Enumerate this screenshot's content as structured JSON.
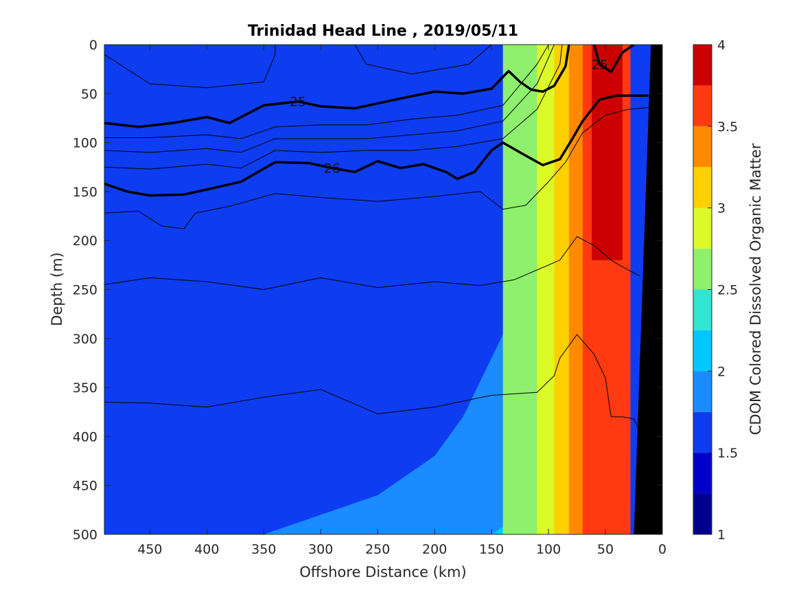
{
  "chart_data": {
    "type": "heatmap",
    "title": "Trinidad Head Line , 2019/05/11",
    "xlabel": "Offshore Distance (km)",
    "ylabel": "Depth (m)",
    "xlim": [
      490,
      0
    ],
    "x_reversed": true,
    "ylim": [
      0,
      500
    ],
    "y_reversed": true,
    "xticks": [
      450,
      400,
      350,
      300,
      250,
      200,
      150,
      100,
      50,
      0
    ],
    "yticks": [
      0,
      50,
      100,
      150,
      200,
      250,
      300,
      350,
      400,
      450,
      500
    ],
    "colorbar": {
      "label": "CDOM Colored Dissolved Organic Matter",
      "range": [
        1,
        4
      ],
      "ticks": [
        1,
        1.5,
        2,
        2.5,
        3,
        3.5,
        4
      ],
      "levels": [
        1,
        1.25,
        1.5,
        1.75,
        2,
        2.25,
        2.5,
        2.75,
        3,
        3.25,
        3.5,
        3.75,
        4
      ],
      "colors": [
        "#00008f",
        "#0000cd",
        "#0e3cf0",
        "#1a8cff",
        "#00c8ff",
        "#30e6d2",
        "#8ef06c",
        "#dcfa28",
        "#ffd000",
        "#ff8a00",
        "#ff3a10",
        "#cc0000"
      ]
    },
    "field_bands": [
      {
        "level": 2,
        "boundary_depths": [
          330,
          320,
          300,
          280,
          260,
          240,
          220,
          200,
          160,
          120,
          90,
          60,
          40,
          20
        ]
      },
      {
        "level": 3,
        "boundary_depths": [
          500,
          500,
          500,
          500,
          480,
          460,
          420,
          380,
          320,
          260,
          220,
          180,
          160,
          150
        ]
      },
      {
        "level": 4,
        "boundary_depths": [
          500,
          500,
          500,
          500,
          500,
          500,
          500,
          500,
          500,
          480,
          440,
          380,
          340,
          300
        ]
      },
      {
        "level": 5,
        "boundary_depths": [
          500,
          500,
          500,
          500,
          500,
          500,
          500,
          500,
          500,
          500,
          500,
          480,
          430,
          380
        ]
      },
      {
        "level": 6,
        "boundary_depths": [
          500,
          500,
          500,
          500,
          500,
          500,
          500,
          500,
          500,
          500,
          500,
          500,
          500,
          480
        ]
      }
    ],
    "field_x": [
      490,
      450,
      400,
      350,
      300,
      250,
      200,
      175,
      150,
      125,
      110,
      100,
      90,
      85
    ],
    "nearshore_bands": [
      {
        "level": 6,
        "x_outer": 140,
        "x_inner": 100
      },
      {
        "level": 7,
        "x_outer": 110,
        "x_inner": 88
      },
      {
        "level": 8,
        "x_outer": 95,
        "x_inner": 80
      },
      {
        "level": 9,
        "x_outer": 82,
        "x_inner": 68
      },
      {
        "level": 10,
        "x_outer": 70,
        "x_inner": 28
      }
    ],
    "core_band": {
      "level": 11,
      "x_outer": 62,
      "x_inner": 35,
      "depth_top": 0,
      "depth_bottom": 220
    },
    "bathymetry": [
      [
        10,
        0
      ],
      [
        0,
        0
      ],
      [
        0,
        500
      ],
      [
        25,
        500
      ]
    ],
    "contours": [
      {
        "label": "25",
        "bold": true,
        "points": [
          [
            490,
            80
          ],
          [
            460,
            84
          ],
          [
            430,
            80
          ],
          [
            400,
            74
          ],
          [
            380,
            80
          ],
          [
            350,
            62
          ],
          [
            320,
            58
          ],
          [
            300,
            63
          ],
          [
            270,
            65
          ],
          [
            230,
            55
          ],
          [
            200,
            48
          ],
          [
            175,
            50
          ],
          [
            150,
            45
          ],
          [
            135,
            27
          ],
          [
            125,
            38
          ],
          [
            115,
            46
          ],
          [
            105,
            48
          ],
          [
            95,
            42
          ],
          [
            85,
            22
          ],
          [
            82,
            0
          ]
        ]
      },
      {
        "label": "25",
        "bold": true,
        "points": [
          [
            60,
            0
          ],
          [
            55,
            20
          ],
          [
            45,
            28
          ],
          [
            35,
            8
          ],
          [
            25,
            0
          ]
        ]
      },
      {
        "label": "26",
        "bold": true,
        "points": [
          [
            490,
            142
          ],
          [
            470,
            150
          ],
          [
            450,
            154
          ],
          [
            420,
            153
          ],
          [
            400,
            148
          ],
          [
            370,
            140
          ],
          [
            340,
            120
          ],
          [
            310,
            121
          ],
          [
            290,
            126
          ],
          [
            270,
            130
          ],
          [
            250,
            119
          ],
          [
            230,
            126
          ],
          [
            210,
            122
          ],
          [
            190,
            130
          ],
          [
            180,
            137
          ],
          [
            165,
            130
          ],
          [
            150,
            108
          ],
          [
            140,
            100
          ],
          [
            125,
            110
          ],
          [
            105,
            123
          ],
          [
            90,
            117
          ],
          [
            80,
            98
          ],
          [
            70,
            78
          ],
          [
            55,
            56
          ],
          [
            40,
            52
          ],
          [
            12,
            52
          ]
        ]
      },
      {
        "label": "",
        "bold": false,
        "points": [
          [
            490,
            10
          ],
          [
            450,
            40
          ],
          [
            400,
            44
          ],
          [
            350,
            38
          ],
          [
            340,
            10
          ],
          [
            340,
            0
          ]
        ]
      },
      {
        "label": "",
        "bold": false,
        "points": [
          [
            270,
            0
          ],
          [
            260,
            20
          ],
          [
            220,
            30
          ],
          [
            170,
            20
          ],
          [
            150,
            0
          ]
        ]
      },
      {
        "label": "",
        "bold": false,
        "points": [
          [
            490,
            95
          ],
          [
            450,
            95
          ],
          [
            400,
            92
          ],
          [
            370,
            96
          ],
          [
            340,
            84
          ],
          [
            300,
            82
          ],
          [
            260,
            82
          ],
          [
            220,
            76
          ],
          [
            180,
            72
          ],
          [
            140,
            62
          ],
          [
            110,
            20
          ],
          [
            100,
            0
          ]
        ]
      },
      {
        "label": "",
        "bold": false,
        "points": [
          [
            490,
            108
          ],
          [
            450,
            110
          ],
          [
            400,
            106
          ],
          [
            370,
            110
          ],
          [
            340,
            96
          ],
          [
            300,
            96
          ],
          [
            260,
            96
          ],
          [
            220,
            92
          ],
          [
            180,
            88
          ],
          [
            140,
            78
          ],
          [
            110,
            40
          ],
          [
            95,
            0
          ]
        ]
      },
      {
        "label": "",
        "bold": false,
        "points": [
          [
            490,
            125
          ],
          [
            450,
            127
          ],
          [
            400,
            122
          ],
          [
            370,
            126
          ],
          [
            340,
            108
          ],
          [
            300,
            110
          ],
          [
            260,
            108
          ],
          [
            220,
            108
          ],
          [
            180,
            104
          ],
          [
            140,
            96
          ],
          [
            110,
            66
          ],
          [
            90,
            20
          ],
          [
            88,
            0
          ]
        ]
      },
      {
        "label": "",
        "bold": false,
        "points": [
          [
            490,
            172
          ],
          [
            460,
            170
          ],
          [
            440,
            185
          ],
          [
            420,
            188
          ],
          [
            410,
            172
          ],
          [
            380,
            165
          ],
          [
            340,
            152
          ],
          [
            300,
            156
          ],
          [
            250,
            160
          ],
          [
            200,
            155
          ],
          [
            160,
            150
          ],
          [
            140,
            168
          ],
          [
            120,
            164
          ],
          [
            100,
            140
          ],
          [
            85,
            120
          ],
          [
            70,
            90
          ],
          [
            50,
            72
          ],
          [
            30,
            66
          ],
          [
            10,
            64
          ]
        ]
      },
      {
        "label": "",
        "bold": false,
        "points": [
          [
            490,
            245
          ],
          [
            450,
            238
          ],
          [
            400,
            242
          ],
          [
            350,
            250
          ],
          [
            300,
            238
          ],
          [
            250,
            248
          ],
          [
            200,
            242
          ],
          [
            160,
            246
          ],
          [
            130,
            240
          ],
          [
            110,
            230
          ],
          [
            90,
            220
          ],
          [
            75,
            196
          ],
          [
            60,
            205
          ],
          [
            45,
            220
          ],
          [
            30,
            230
          ],
          [
            20,
            236
          ]
        ]
      },
      {
        "label": "",
        "bold": false,
        "points": [
          [
            490,
            365
          ],
          [
            450,
            366
          ],
          [
            400,
            370
          ],
          [
            350,
            360
          ],
          [
            300,
            352
          ],
          [
            250,
            377
          ],
          [
            200,
            370
          ],
          [
            150,
            358
          ],
          [
            110,
            355
          ],
          [
            95,
            338
          ],
          [
            90,
            320
          ],
          [
            75,
            296
          ],
          [
            60,
            316
          ],
          [
            50,
            340
          ],
          [
            45,
            380
          ],
          [
            35,
            380
          ],
          [
            25,
            382
          ],
          [
            20,
            395
          ]
        ]
      }
    ]
  }
}
